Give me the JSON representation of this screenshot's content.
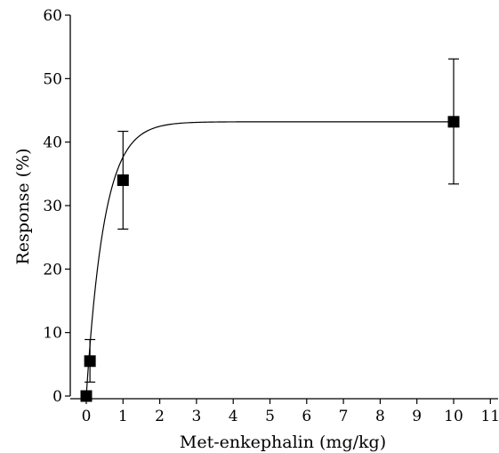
{
  "chart_data": {
    "type": "scatter",
    "title": "",
    "xlabel": "Met-enkephalin (mg/kg)",
    "ylabel": "Response (%)",
    "xlim": [
      -0.5,
      11.3
    ],
    "ylim": [
      0,
      60
    ],
    "xticks": [
      "0",
      "1",
      "2",
      "3",
      "4",
      "5",
      "6",
      "7",
      "8",
      "9",
      "10",
      "11"
    ],
    "yticks": [
      "0",
      "10",
      "20",
      "30",
      "40",
      "50",
      "60"
    ],
    "grid": false,
    "legend": "none",
    "series": [
      {
        "marker": "square",
        "color": "#000000",
        "points": [
          {
            "x": 0.0,
            "y": 0.0,
            "err_low": 0.0,
            "err_high": 0.0
          },
          {
            "x": 0.1,
            "y": 5.5,
            "err_low": 2.2,
            "err_high": 8.9
          },
          {
            "x": 1.0,
            "y": 34.0,
            "err_low": 26.3,
            "err_high": 41.7
          },
          {
            "x": 10.0,
            "y": 43.2,
            "err_low": 33.4,
            "err_high": 53.1
          }
        ]
      }
    ],
    "fit": {
      "model": "exponential-rise",
      "emax": 43.2,
      "k": 2.05
    }
  }
}
